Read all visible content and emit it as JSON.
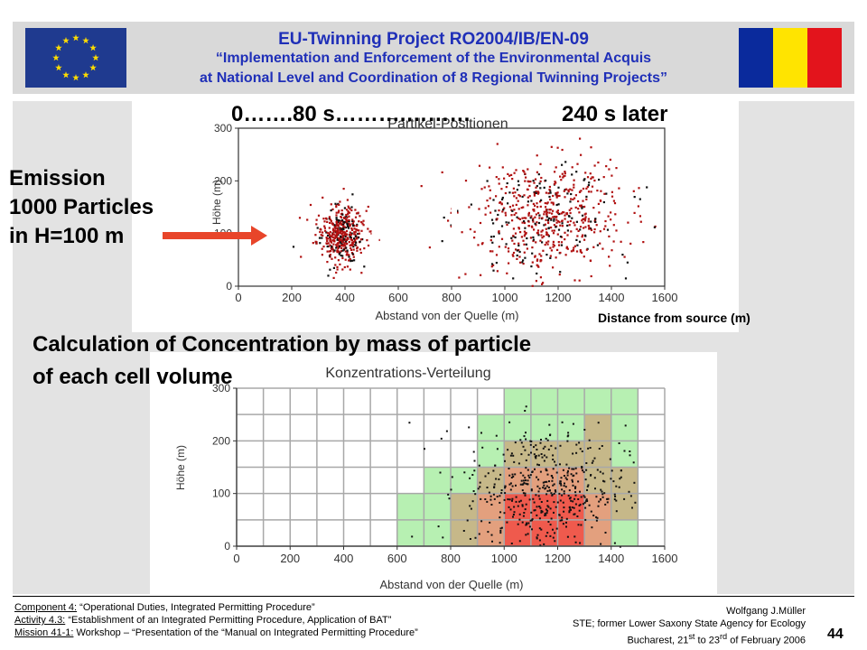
{
  "header": {
    "line1": "EU-Twinning  Project  RO2004/IB/EN-09",
    "line2": "“Implementation and Enforcement of the Environmental Acquis",
    "line3": "at National Level and Coordination of 8 Regional Twinning Projects”",
    "colors": {
      "text": "#1f2fb8",
      "eu_blue": "#1f3a8f",
      "eu_star": "#ffdd00",
      "ro_blue": "#0a2a9c",
      "ro_yellow": "#ffe400",
      "ro_red": "#e3141c"
    }
  },
  "labels": {
    "emission_line1": "Emission",
    "emission_line2": "1000 Particles",
    "emission_line3": "in H=100 m",
    "time_early": "0…….80 s……….………",
    "time_late": "240 s later",
    "distance_from_source": "Distance from source (m)",
    "calc_line1": "Calculation of Concentration by mass of particle",
    "calc_line2": "of each cell volume"
  },
  "plot1": {
    "title": "Partikel-Positionen",
    "ylabel": "Höhe (m)",
    "xlabel": "Abstand von der Quelle (m)",
    "xticks": [
      "0",
      "200",
      "400",
      "600",
      "800",
      "1000",
      "1200",
      "1400",
      "1600"
    ],
    "yticks": [
      "0",
      "100",
      "200",
      "300"
    ]
  },
  "plot2": {
    "title": "Konzentrations-Verteilung",
    "ylabel": "Höhe (m)",
    "xlabel": "Abstand von der Quelle (m)",
    "xticks": [
      "0",
      "200",
      "400",
      "600",
      "800",
      "1000",
      "1200",
      "1400",
      "1600"
    ],
    "yticks": [
      "0",
      "100",
      "200",
      "300"
    ]
  },
  "chart_data": [
    {
      "type": "scatter",
      "title": "Partikel-Positionen",
      "xlabel": "Abstand von der Quelle (m)",
      "ylabel": "Höhe (m)",
      "xlim": [
        0,
        1600
      ],
      "ylim": [
        0,
        300
      ],
      "clusters": [
        {
          "center_x": 380,
          "center_y": 100,
          "spread_x": 80,
          "spread_y": 50,
          "count": 450
        },
        {
          "center_x": 1150,
          "center_y": 130,
          "spread_x": 270,
          "spread_y": 95,
          "count": 650
        }
      ]
    },
    {
      "type": "heatmap",
      "title": "Konzentrations-Verteilung",
      "xlabel": "Abstand von der Quelle (m)",
      "ylabel": "Höhe (m)",
      "xlim": [
        0,
        1600
      ],
      "ylim": [
        0,
        300
      ],
      "cell_width_m": 100,
      "cell_height_m": 50,
      "levels": [
        [
          0,
          0,
          0,
          0,
          0,
          0,
          0,
          0,
          0,
          0,
          1,
          1,
          1,
          1,
          1,
          0
        ],
        [
          0,
          0,
          0,
          0,
          0,
          0,
          0,
          0,
          0,
          1,
          1,
          1,
          1,
          2,
          1,
          0
        ],
        [
          0,
          0,
          0,
          0,
          0,
          0,
          0,
          0,
          0,
          1,
          2,
          2,
          2,
          2,
          1,
          0
        ],
        [
          0,
          0,
          0,
          0,
          0,
          0,
          0,
          1,
          1,
          2,
          3,
          3,
          3,
          2,
          2,
          0
        ],
        [
          0,
          0,
          0,
          0,
          0,
          0,
          1,
          1,
          2,
          3,
          4,
          4,
          4,
          3,
          2,
          0
        ],
        [
          0,
          0,
          0,
          0,
          0,
          0,
          1,
          1,
          2,
          3,
          4,
          4,
          4,
          3,
          1,
          0
        ]
      ],
      "level_colors": [
        "#ffffff",
        "#b7f0b2",
        "#c6b889",
        "#e3a07e",
        "#ef5a4d"
      ],
      "points": {
        "x_min": 600,
        "x_max": 1500,
        "y_min": 0,
        "y_max": 300,
        "count": 520
      }
    }
  ]
}
